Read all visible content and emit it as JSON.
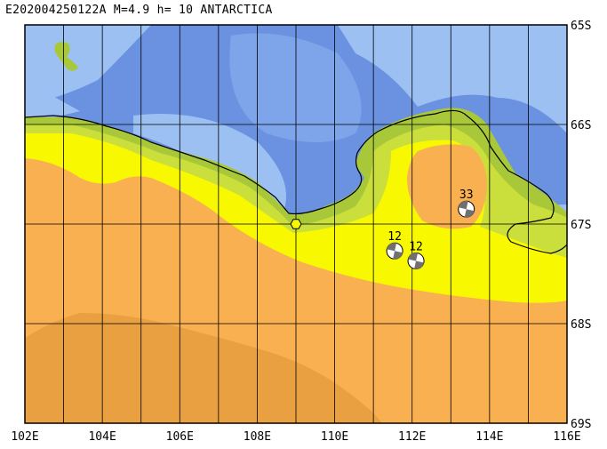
{
  "title": "E202004250122A M=4.9 h= 10 ANTARCTICA",
  "lat_labels": [
    "65S",
    "66S",
    "67S",
    "68S",
    "69S"
  ],
  "lon_labels": [
    "102E",
    "104E",
    "106E",
    "108E",
    "110E",
    "112E",
    "114E",
    "116E"
  ],
  "colors": {
    "ocean_deep": "#6a92e0",
    "ocean_mid": "#7ea4ea",
    "ocean_shallow": "#9cc0f2",
    "land_green": "#a8c83a",
    "land_lightgreen": "#cadf3c",
    "land_yellow": "#f8f800",
    "land_orange": "#f8b050",
    "land_darkorange": "#e8a040",
    "grid": "#000000"
  },
  "epicenter": {
    "lon": 109.0,
    "lat": -67.0
  },
  "focal_mechanisms": [
    {
      "label": "33",
      "lon": 113.4,
      "lat": -66.85
    },
    {
      "label": "12",
      "lon": 111.55,
      "lat": -67.27
    },
    {
      "label": "12",
      "lon": 112.1,
      "lat": -67.37
    }
  ]
}
